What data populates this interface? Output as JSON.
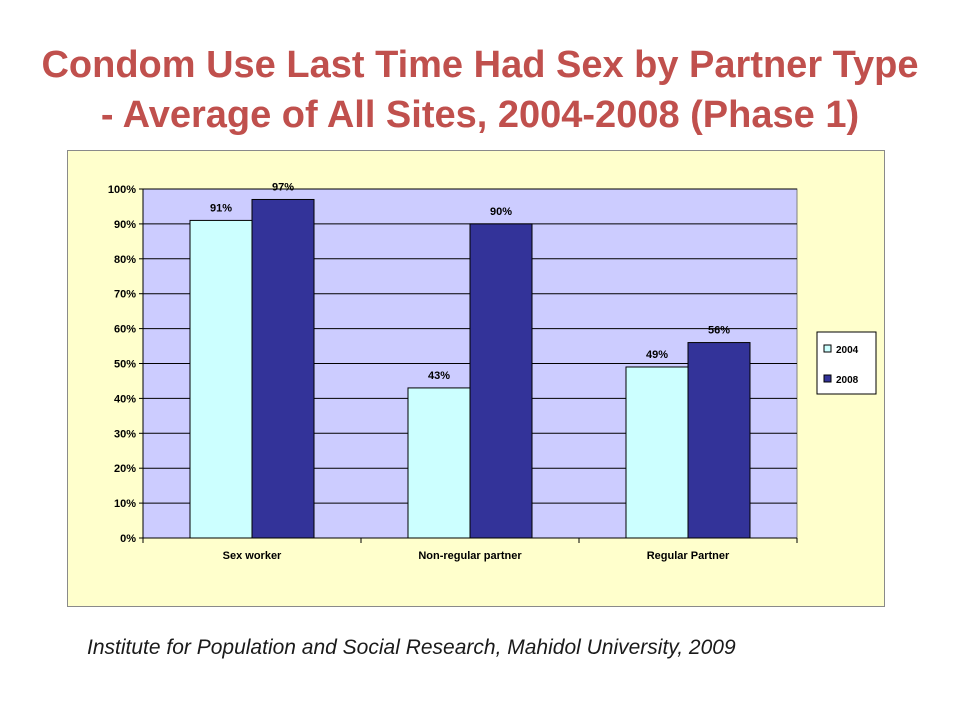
{
  "slide": {
    "title_lines": [
      "Condom Use Last Time Had Sex by Partner Type",
      "- Average of All Sites, 2004-2008 (Phase 1)"
    ],
    "footer": "Institute for Population and Social Research,  Mahidol University, 2009"
  },
  "colors": {
    "title": "#c0504d",
    "chart_bg": "#ffffcc",
    "plot_bg": "#ccccff",
    "series_2004": "#ccffff",
    "series_2008": "#333399"
  },
  "chart_data": {
    "type": "bar",
    "title": "Condom Use Last Time Had Sex by Partner Type - Average of All Sites, 2004-2008 (Phase 1)",
    "xlabel": "",
    "ylabel": "",
    "categories": [
      "Sex worker",
      "Non-regular partner",
      "Regular Partner"
    ],
    "series": [
      {
        "name": "2004",
        "values": [
          91,
          43,
          49
        ],
        "labels": [
          "91%",
          "43%",
          "49%"
        ]
      },
      {
        "name": "2008",
        "values": [
          97,
          90,
          56
        ],
        "labels": [
          "97%",
          "90%",
          "56%"
        ]
      }
    ],
    "ylim": [
      0,
      100
    ],
    "yticks": [
      0,
      10,
      20,
      30,
      40,
      50,
      60,
      70,
      80,
      90,
      100
    ],
    "ytick_labels": [
      "0%",
      "10%",
      "20%",
      "30%",
      "40%",
      "50%",
      "60%",
      "70%",
      "80%",
      "90%",
      "100%"
    ],
    "grid": true,
    "legend_position": "right"
  }
}
